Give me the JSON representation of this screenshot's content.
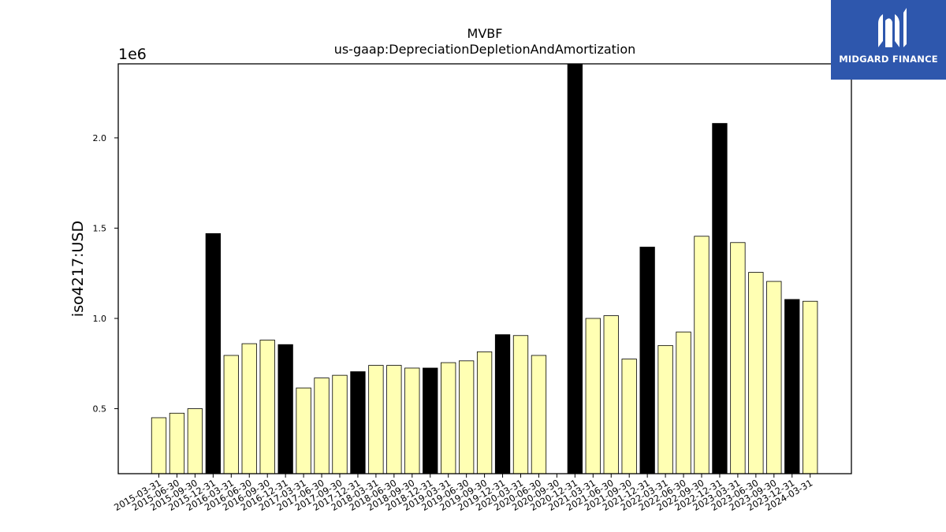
{
  "brand": {
    "name": "MIDGARD FINANCE",
    "bg_color": "#2e57ad",
    "mark": "midgard-logo-icon"
  },
  "chart_data": {
    "type": "bar",
    "title": "MVBF",
    "subtitle": "us-gaap:DepreciationDepletionAndAmortization",
    "ylabel": "iso4217:USD",
    "xlabel": "",
    "y_scale_label": "1e6",
    "ylim": [
      0.14,
      2.41
    ],
    "yticks": [
      0.5,
      1.0,
      1.5,
      2.0
    ],
    "ytick_labels": [
      "0.5",
      "1.0",
      "1.5",
      "2.0"
    ],
    "grid": false,
    "legend": "none",
    "colors": {
      "quarter": "#ffffb3",
      "year_end": "#000000",
      "edge": "#000000"
    },
    "categories": [
      "2015-03-31",
      "2015-06-30",
      "2015-09-30",
      "2015-12-31",
      "2016-03-31",
      "2016-06-30",
      "2016-09-30",
      "2016-12-31",
      "2017-03-31",
      "2017-06-30",
      "2017-09-30",
      "2017-12-31",
      "2018-03-31",
      "2018-06-30",
      "2018-09-30",
      "2018-12-31",
      "2019-03-31",
      "2019-06-30",
      "2019-09-30",
      "2019-12-31",
      "2020-03-31",
      "2020-06-30",
      "2020-09-30",
      "2020-12-31",
      "2021-03-31",
      "2021-06-30",
      "2021-09-30",
      "2021-12-31",
      "2022-03-31",
      "2022-06-30",
      "2022-09-30",
      "2022-12-31",
      "2023-03-31",
      "2023-06-30",
      "2023-09-30",
      "2023-12-31",
      "2024-03-31"
    ],
    "values": [
      0.45,
      0.475,
      0.5,
      1.47,
      0.795,
      0.86,
      0.88,
      0.855,
      0.615,
      0.67,
      0.685,
      0.705,
      0.74,
      0.74,
      0.725,
      0.725,
      0.755,
      0.765,
      0.815,
      0.91,
      0.905,
      0.795,
      null,
      2.41,
      1.0,
      1.015,
      0.775,
      1.395,
      0.85,
      0.925,
      1.455,
      2.08,
      1.42,
      1.255,
      1.205,
      1.105,
      1.095
    ],
    "year_end": [
      false,
      false,
      false,
      true,
      false,
      false,
      false,
      true,
      false,
      false,
      false,
      true,
      false,
      false,
      false,
      true,
      false,
      false,
      false,
      true,
      false,
      false,
      false,
      true,
      false,
      false,
      false,
      true,
      false,
      false,
      false,
      true,
      false,
      false,
      false,
      true,
      false
    ]
  }
}
